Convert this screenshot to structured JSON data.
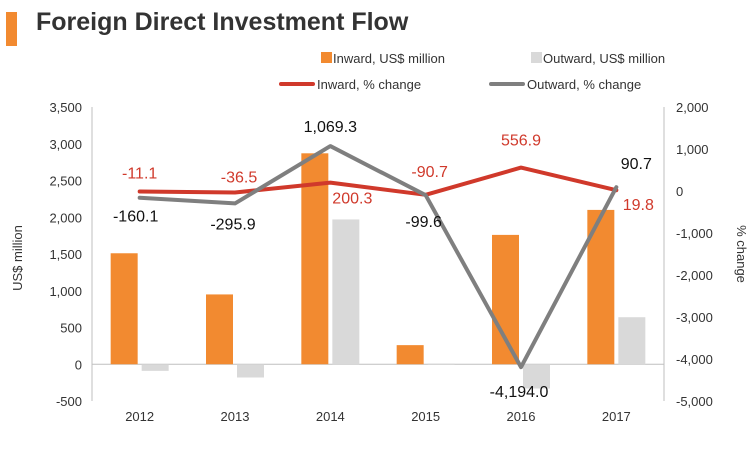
{
  "chart_data": {
    "type": "bar",
    "title": "Foreign Direct Investment Flow",
    "categories": [
      "2012",
      "2013",
      "2014",
      "2015",
      "2016",
      "2017"
    ],
    "bar_series": [
      {
        "name": "Inward, US$ million",
        "color": "#f28a30",
        "values": [
          1510,
          950,
          2870,
          260,
          1760,
          2100
        ]
      },
      {
        "name": "Outward, US$ million",
        "color": "#d9d9d9",
        "values": [
          -90,
          -180,
          1970,
          10,
          -330,
          640
        ]
      }
    ],
    "line_series": [
      {
        "name": "Inward, % change",
        "color": "#d0392b",
        "values": [
          -11.1,
          -36.5,
          200.3,
          -90.7,
          556.9,
          19.8
        ],
        "labels": [
          "-11.1",
          "-36.5",
          "200.3",
          "-90.7",
          "556.9",
          "19.8"
        ]
      },
      {
        "name": "Outward, % change",
        "color": "#7f7f7f",
        "values": [
          -160.1,
          -295.9,
          1069.3,
          -99.6,
          -4194.0,
          90.7
        ],
        "labels": [
          "-160.1",
          "-295.9",
          "1,069.3",
          "-99.6",
          "-4,194.0",
          "90.7"
        ]
      }
    ],
    "y_left": {
      "label": "US$ million",
      "min": -500,
      "max": 3500,
      "ticks": [
        "-500",
        "0",
        "500",
        "1,000",
        "1,500",
        "2,000",
        "2,500",
        "3,000",
        "3,500"
      ]
    },
    "y_right": {
      "label": "% change",
      "min": -5000,
      "max": 2000,
      "ticks": [
        "-5,000",
        "-4,000",
        "-3,000",
        "-2,000",
        "-1,000",
        "0",
        "1,000",
        "2,000"
      ]
    },
    "grid": false,
    "legend_position": "top"
  }
}
